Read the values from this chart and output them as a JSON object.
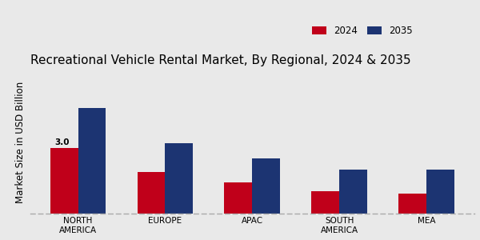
{
  "title": "Recreational Vehicle Rental Market, By Regional, 2024 & 2035",
  "ylabel": "Market Size in USD Billion",
  "categories": [
    "NORTH\nAMERICA",
    "EUROPE",
    "APAC",
    "SOUTH\nAMERICA",
    "MEA"
  ],
  "values_2024": [
    3.0,
    1.9,
    1.4,
    1.0,
    0.9
  ],
  "values_2035": [
    4.8,
    3.2,
    2.5,
    2.0,
    2.0
  ],
  "color_2024": "#c0001a",
  "color_2035": "#1c3472",
  "label_2024": "2024",
  "label_2035": "2035",
  "bar_width": 0.32,
  "annotation_value": "3.0",
  "annotation_category_idx": 0,
  "background_color": "#e9e9e9",
  "title_fontsize": 11,
  "axis_label_fontsize": 8.5,
  "tick_fontsize": 7.5,
  "legend_fontsize": 8.5,
  "ylim": [
    0,
    6.5
  ]
}
